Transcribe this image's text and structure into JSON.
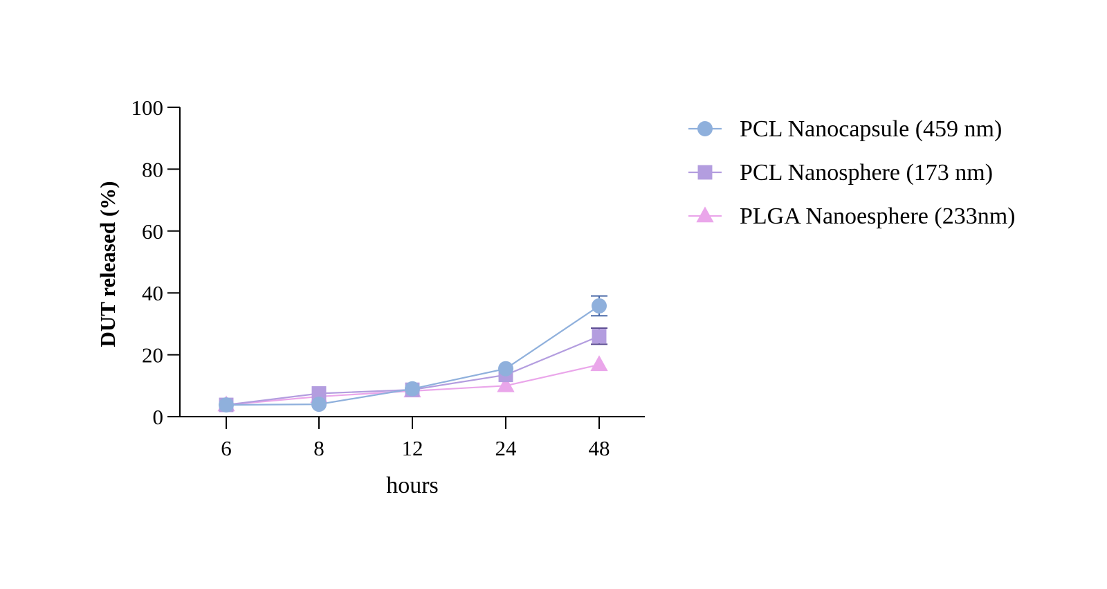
{
  "chart_data": {
    "type": "line",
    "categories": [
      "6",
      "8",
      "12",
      "24",
      "48"
    ],
    "xlabel": "hours",
    "ylabel": "DUT released (%)",
    "ylim": [
      0,
      100
    ],
    "yticks": [
      0,
      20,
      40,
      60,
      80,
      100
    ],
    "legend_position": "right",
    "series": [
      {
        "name": "PCL Nanocapsule (459 nm)",
        "marker": "circle",
        "color": "#8fb0dc",
        "error_color": "#4a6aa8",
        "values": [
          3.8,
          4.0,
          9.0,
          15.5,
          35.8
        ],
        "errors": [
          0,
          0,
          0,
          0,
          3.2
        ]
      },
      {
        "name": "PCL Nanosphere (173 nm)",
        "marker": "square",
        "color": "#b39ddf",
        "error_color": "#5a4a90",
        "values": [
          3.8,
          7.5,
          8.7,
          13.5,
          26.0
        ],
        "errors": [
          0,
          0,
          0,
          0,
          2.6
        ]
      },
      {
        "name": "PLGA Nanoesphere (233nm)",
        "marker": "triangle",
        "color": "#eaa6ea",
        "error_color": "#b070b0",
        "values": [
          3.8,
          6.5,
          8.3,
          10.0,
          16.8
        ],
        "errors": [
          0,
          0,
          0,
          0,
          0
        ]
      }
    ]
  }
}
